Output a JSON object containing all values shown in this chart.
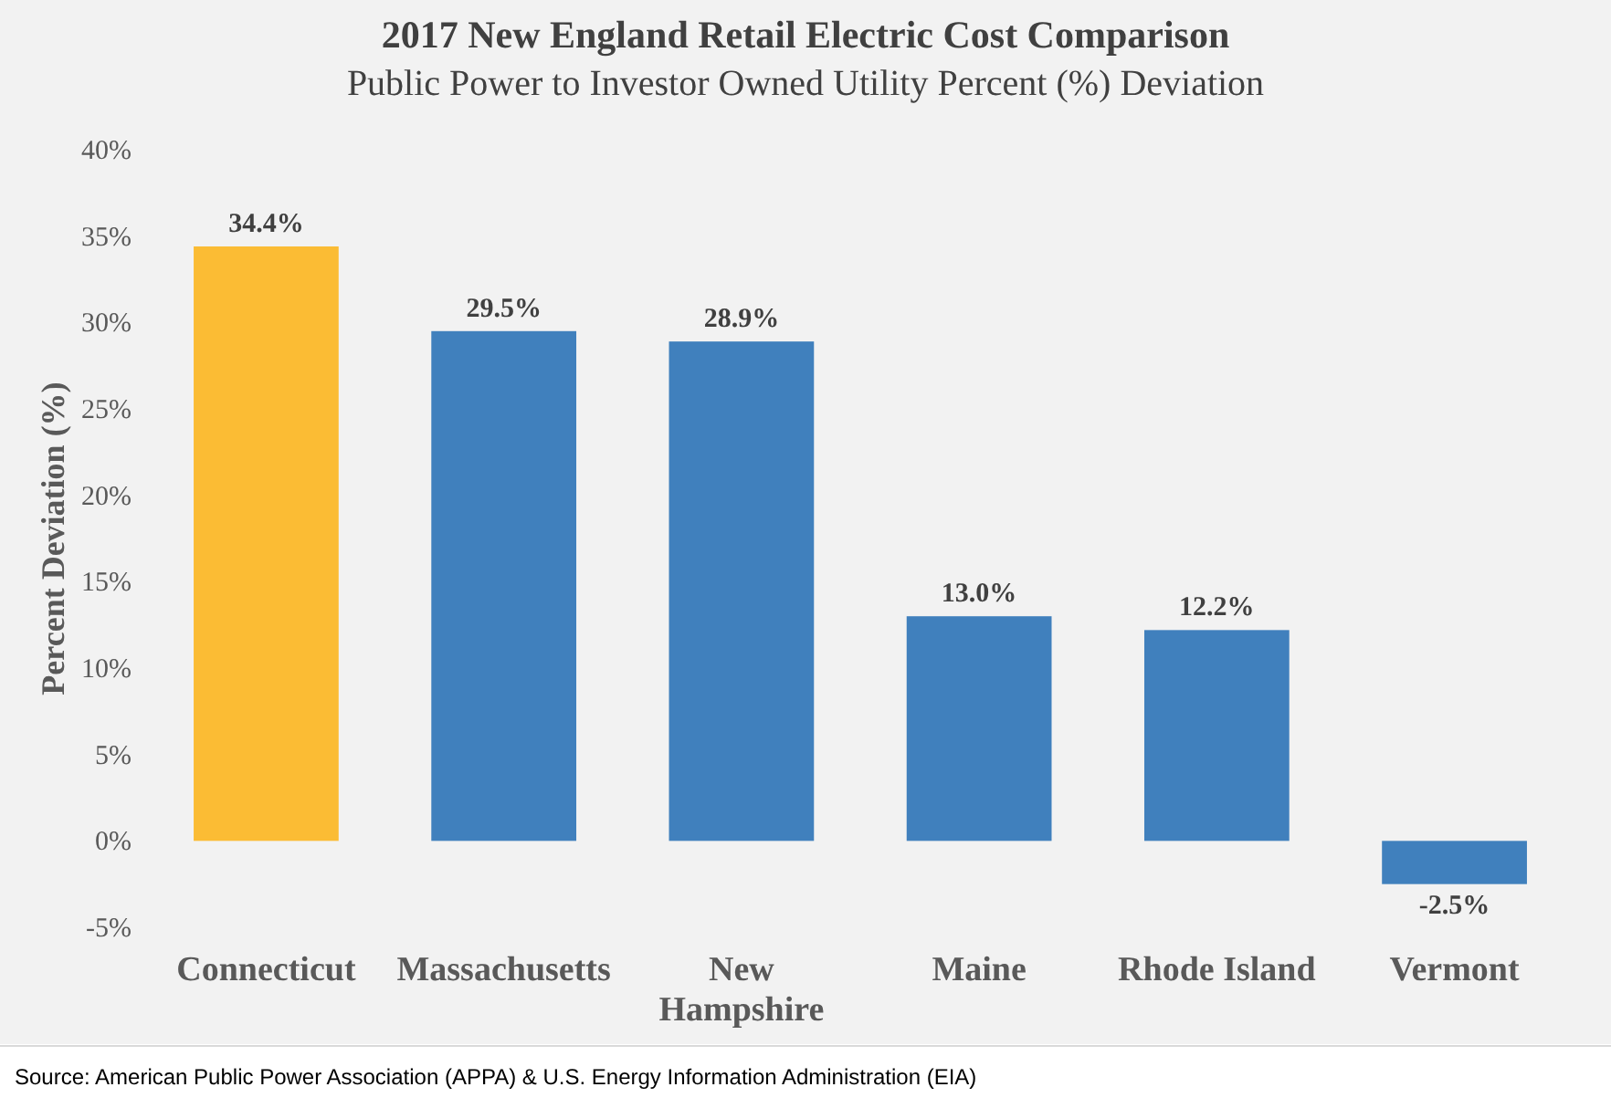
{
  "chart_data": {
    "type": "bar",
    "title": "2017 New England Retail Electric Cost Comparison",
    "subtitle": "Public Power to Investor Owned Utility Percent (%) Deviation",
    "ylabel": "Percent Deviation (%)",
    "categories": [
      "Connecticut",
      "Massachusetts",
      "New Hampshire",
      "Maine",
      "Rhode Island",
      "Vermont"
    ],
    "values": [
      34.4,
      29.5,
      28.9,
      13.0,
      12.2,
      -2.5
    ],
    "colors": [
      "#fbbc34",
      "#4080bd",
      "#4080bd",
      "#4080bd",
      "#4080bd",
      "#4080bd"
    ],
    "value_labels": [
      "34.4%",
      "29.5%",
      "28.9%",
      "13.0%",
      "12.2%",
      "-2.5%"
    ],
    "ylim": [
      -5,
      40
    ],
    "yticks": [
      {
        "value": -5,
        "label": "-5%"
      },
      {
        "value": 0,
        "label": "0%"
      },
      {
        "value": 5,
        "label": "5%"
      },
      {
        "value": 10,
        "label": "10%"
      },
      {
        "value": 15,
        "label": "15%"
      },
      {
        "value": 20,
        "label": "20%"
      },
      {
        "value": 25,
        "label": "25%"
      },
      {
        "value": 30,
        "label": "30%"
      },
      {
        "value": 35,
        "label": "35%"
      },
      {
        "value": 40,
        "label": "40%"
      }
    ],
    "annotations": [
      "Source: American Public Power Association (APPA) & U.S. Energy Information Administration (EIA)"
    ]
  }
}
